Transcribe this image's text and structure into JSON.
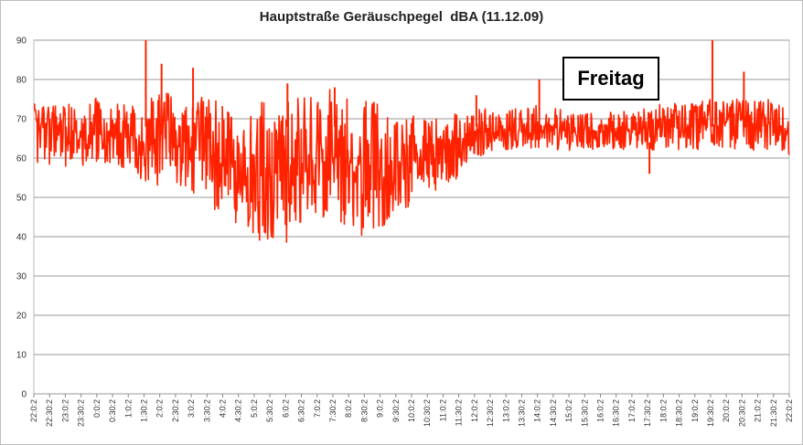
{
  "chart_data": {
    "type": "line",
    "title": "Hauptstraße Geräuschpegel  dBA (11.12.09)",
    "xlabel": "",
    "ylabel": "",
    "ylim": [
      0,
      90
    ],
    "yticks": [
      0,
      10,
      20,
      30,
      40,
      50,
      60,
      70,
      80,
      90
    ],
    "x_tick_labels": [
      "22:0:2",
      "22:30:2",
      "23:0:2",
      "23:30:2",
      "0:0:2",
      "0:30:2",
      "1:0:2",
      "1:30:2",
      "2:0:2",
      "2:30:2",
      "3:0:2",
      "3:30:2",
      "4:0:2",
      "4:30:2",
      "5:0:2",
      "5:30:2",
      "6:0:2",
      "6:30:2",
      "7:0:2",
      "7:30:2",
      "8:0:2",
      "8:30:2",
      "9:0:2",
      "9:30:2",
      "10:0:2",
      "10:30:2",
      "11:0:2",
      "11:30:2",
      "12:0:2",
      "12:30:2",
      "13:0:2",
      "13:30:2",
      "14:0:2",
      "14:30:2",
      "15:0:2",
      "15:30:2",
      "16:0:2",
      "16:30:2",
      "17:0:2",
      "17:30:2",
      "18:0:2",
      "18:30:2",
      "19:0:2",
      "19:30:2",
      "20:0:2",
      "20:30:2",
      "21:0:2",
      "21:30:2",
      "22:0:2"
    ],
    "grid": true,
    "legend": "none",
    "series": [
      {
        "color": "#ff2200",
        "x": [
          "22:0:2",
          "22:30:2",
          "23:0:2",
          "23:30:2",
          "0:0:2",
          "0:30:2",
          "1:0:2",
          "1:30:2",
          "2:0:2",
          "2:30:2",
          "3:0:2",
          "3:30:2",
          "4:0:2",
          "4:30:2",
          "5:0:2",
          "5:30:2",
          "6:0:2",
          "6:30:2",
          "7:0:2",
          "7:30:2",
          "8:0:2",
          "8:30:2",
          "9:0:2",
          "9:30:2",
          "10:0:2",
          "10:30:2",
          "11:0:2",
          "11:30:2",
          "12:0:2",
          "12:30:2",
          "13:0:2",
          "13:30:2",
          "14:0:2",
          "14:30:2",
          "15:0:2",
          "15:30:2",
          "16:0:2",
          "16:30:2",
          "17:0:2",
          "17:30:2",
          "18:0:2",
          "18:30:2",
          "19:0:2",
          "19:30:2",
          "20:0:2",
          "20:30:2",
          "21:0:2",
          "21:30:2",
          "22:0:2"
        ],
        "low": [
          59,
          58,
          57,
          57,
          58,
          56,
          57,
          54,
          53,
          53,
          50,
          48,
          45,
          43,
          40,
          37,
          38,
          41,
          43,
          40,
          42,
          40,
          42,
          45,
          48,
          50,
          53,
          55,
          60,
          61,
          62,
          62,
          62,
          62,
          62,
          62,
          62,
          62,
          62,
          62,
          62,
          62,
          62,
          62,
          62,
          62,
          62,
          62,
          60
        ],
        "high": [
          74,
          73,
          74,
          73,
          76,
          74,
          75,
          74,
          80,
          75,
          76,
          77,
          74,
          73,
          73,
          76,
          78,
          78,
          76,
          78,
          77,
          75,
          74,
          72,
          71,
          70,
          70,
          72,
          74,
          72,
          72,
          73,
          74,
          73,
          73,
          72,
          72,
          72,
          72,
          73,
          74,
          74,
          74,
          75,
          75,
          75,
          75,
          75,
          72
        ]
      }
    ],
    "spikes": [
      {
        "x": "1:30:2",
        "y": 90
      },
      {
        "x": "2:0:2",
        "y": 84
      },
      {
        "x": "3:0:2",
        "y": 83
      },
      {
        "x": "6:0:2",
        "y": 79
      },
      {
        "x": "7:30:2",
        "y": 78
      },
      {
        "x": "12:0:2",
        "y": 76
      },
      {
        "x": "14:0:2",
        "y": 80
      },
      {
        "x": "17:30:2",
        "y": 56
      },
      {
        "x": "19:30:2",
        "y": 90
      },
      {
        "x": "20:30:2",
        "y": 82
      }
    ],
    "annotations": [
      {
        "text": "Freitag"
      }
    ]
  }
}
